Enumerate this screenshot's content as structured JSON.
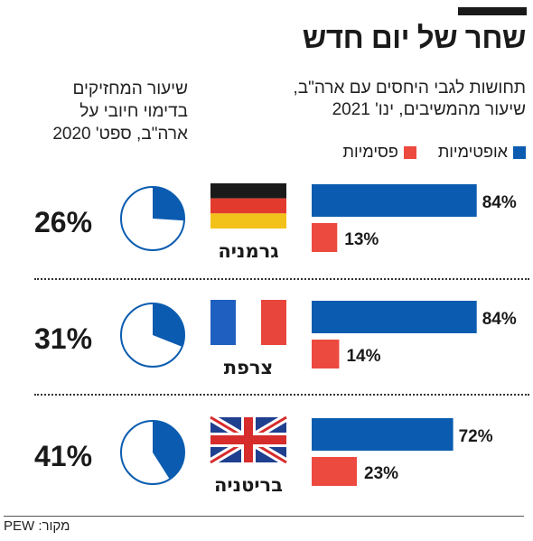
{
  "header": {
    "title": "שחר של יום חדש",
    "subtitle_line1": "תחושות לגבי היחסים עם ארה\"ב,",
    "subtitle_line2": "שיעור מהמשיבים, ינו' 2021",
    "left_line1": "שיעור המחזיקים",
    "left_line2": "בדימוי חיובי על",
    "left_line3": "ארה\"ב, ספט' 2020"
  },
  "legend": {
    "optimistic": "אופטימיות",
    "pessimistic": "פסימיות"
  },
  "source": "מקור: PEW",
  "colors": {
    "blue": "#0b5cb0",
    "red": "#ec4a3f",
    "dark": "#1a1a1a"
  },
  "chart_data": {
    "type": "bar",
    "title": "תחושות לגבי היחסים עם ארה\"ב, שיעור מהמשיבים, ינו' 2021",
    "categories": [
      "גרמניה",
      "צרפת",
      "בריטניה"
    ],
    "flags": [
      "germany",
      "france",
      "uk"
    ],
    "xlim": [
      0,
      100
    ],
    "series": [
      {
        "name": "אופטימיות",
        "values": [
          84,
          84,
          72
        ],
        "labels": [
          "84%",
          "84%",
          "72%"
        ]
      },
      {
        "name": "פסימיות",
        "values": [
          13,
          14,
          23
        ],
        "labels": [
          "13%",
          "14%",
          "23%"
        ]
      }
    ],
    "pie": {
      "title": "שיעור המחזיקים בדימוי חיובי על ארה\"ב, ספט' 2020",
      "values": [
        26,
        31,
        41
      ],
      "labels": [
        "26%",
        "31%",
        "41%"
      ]
    }
  }
}
